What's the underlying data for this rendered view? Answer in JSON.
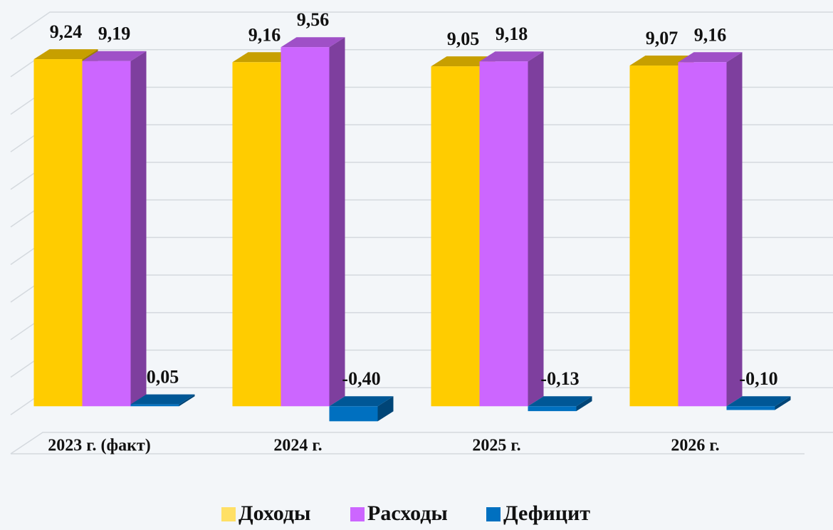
{
  "chart_data": {
    "type": "bar3d",
    "categories": [
      "2023 г. (факт)",
      "2024 г.",
      "2025 г.",
      "2026 г."
    ],
    "series": [
      {
        "name": "Доходы",
        "color": "#ffcc00",
        "values": [
          9.24,
          9.16,
          9.05,
          9.07
        ],
        "value_labels": [
          "9,24",
          "9,16",
          "9,05",
          "9,07"
        ]
      },
      {
        "name": "Расходы",
        "color": "#cc66ff",
        "values": [
          9.19,
          9.56,
          9.18,
          9.16
        ],
        "value_labels": [
          "9,19",
          "9,56",
          "9,18",
          "9,16"
        ]
      },
      {
        "name": "Дефицит",
        "color": "#0070c0",
        "values": [
          0.05,
          -0.4,
          -0.13,
          -0.1
        ],
        "value_labels": [
          "0,05",
          "-0,40",
          "-0,13",
          "-0,10"
        ]
      }
    ],
    "ylim": [
      -1,
      10
    ],
    "yticks": [
      0,
      1,
      2,
      3,
      4,
      5,
      6,
      7,
      8,
      9,
      10
    ],
    "grid": true,
    "legend": "bottom"
  }
}
